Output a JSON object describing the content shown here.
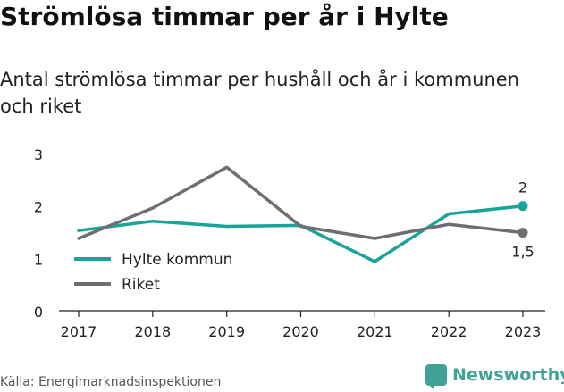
{
  "title": "Strömlösa timmar per år i Hylte",
  "subtitle": "Antal strömlösa timmar per hushåll och år i kommunen och riket",
  "source": "Källa: Energimarknadsinspektionen",
  "brand": {
    "name": "Newsworthy",
    "icon": "newsworthy-logo-icon",
    "color": "#3fa294"
  },
  "chart_data": {
    "type": "line",
    "x": [
      "2017",
      "2018",
      "2019",
      "2020",
      "2021",
      "2022",
      "2023"
    ],
    "series": [
      {
        "name": "Hylte kommun",
        "color": "#1aa399",
        "values": [
          1.53,
          1.71,
          1.61,
          1.63,
          0.94,
          1.85,
          2.0
        ],
        "end_label": "2"
      },
      {
        "name": "Riket",
        "color": "#6e6e73",
        "values": [
          1.38,
          1.96,
          2.74,
          1.61,
          1.38,
          1.65,
          1.49
        ],
        "end_label": "1,5"
      }
    ],
    "yticks": [
      "0",
      "1",
      "2",
      "3"
    ],
    "ylim": [
      0,
      3
    ],
    "grid": false,
    "legend_position": "bottom-left"
  }
}
